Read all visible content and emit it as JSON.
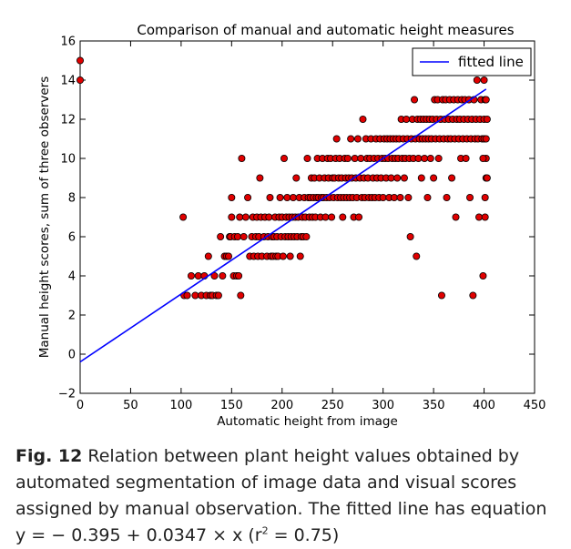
{
  "chart_data": {
    "type": "scatter",
    "title": "Comparison of manual and automatic height measures",
    "xlabel": "Automatic height from image",
    "ylabel": "Manual height scores, sum of three observers",
    "xlim": [
      0,
      450
    ],
    "ylim": [
      -2,
      16
    ],
    "xticks": [
      "0",
      "50",
      "100",
      "150",
      "200",
      "250",
      "300",
      "350",
      "400",
      "450"
    ],
    "yticks": [
      "−2",
      "0",
      "2",
      "4",
      "6",
      "8",
      "10",
      "12",
      "14",
      "16"
    ],
    "grid": false,
    "legend": {
      "position": "top-right",
      "entries": [
        "fitted line"
      ]
    },
    "colors": {
      "points": "#e00000",
      "point_edge": "#000000",
      "line": "#0000ff"
    },
    "series": [
      {
        "kind": "scatter",
        "points": [
          [
            0,
            15
          ],
          [
            0,
            14
          ],
          [
            102,
            7
          ],
          [
            103,
            3
          ],
          [
            106,
            3
          ],
          [
            110,
            4
          ],
          [
            114,
            3
          ],
          [
            117,
            4
          ],
          [
            120,
            3
          ],
          [
            123,
            4
          ],
          [
            125,
            3
          ],
          [
            127,
            5
          ],
          [
            129,
            3
          ],
          [
            131,
            3
          ],
          [
            133,
            4
          ],
          [
            135,
            3
          ],
          [
            137,
            3
          ],
          [
            139,
            6
          ],
          [
            141,
            4
          ],
          [
            143,
            5
          ],
          [
            145,
            5
          ],
          [
            147,
            5
          ],
          [
            148,
            6
          ],
          [
            149,
            6
          ],
          [
            150,
            7
          ],
          [
            150,
            8
          ],
          [
            152,
            4
          ],
          [
            153,
            6
          ],
          [
            155,
            4
          ],
          [
            156,
            6
          ],
          [
            157,
            4
          ],
          [
            158,
            7
          ],
          [
            159,
            3
          ],
          [
            160,
            10
          ],
          [
            162,
            6
          ],
          [
            164,
            7
          ],
          [
            166,
            8
          ],
          [
            168,
            5
          ],
          [
            170,
            6
          ],
          [
            171,
            7
          ],
          [
            172,
            5
          ],
          [
            174,
            6
          ],
          [
            175,
            7
          ],
          [
            176,
            5
          ],
          [
            177,
            6
          ],
          [
            178,
            9
          ],
          [
            179,
            7
          ],
          [
            180,
            5
          ],
          [
            182,
            6
          ],
          [
            183,
            7
          ],
          [
            185,
            5
          ],
          [
            186,
            6
          ],
          [
            187,
            7
          ],
          [
            188,
            8
          ],
          [
            189,
            5
          ],
          [
            190,
            6
          ],
          [
            191,
            5
          ],
          [
            192,
            6
          ],
          [
            193,
            7
          ],
          [
            194,
            5
          ],
          [
            195,
            6
          ],
          [
            196,
            5
          ],
          [
            197,
            7
          ],
          [
            198,
            8
          ],
          [
            199,
            6
          ],
          [
            200,
            7
          ],
          [
            201,
            5
          ],
          [
            202,
            10
          ],
          [
            203,
            6
          ],
          [
            204,
            7
          ],
          [
            205,
            8
          ],
          [
            206,
            6
          ],
          [
            207,
            7
          ],
          [
            208,
            5
          ],
          [
            209,
            6
          ],
          [
            210,
            7
          ],
          [
            211,
            8
          ],
          [
            212,
            6
          ],
          [
            213,
            7
          ],
          [
            214,
            9
          ],
          [
            215,
            6
          ],
          [
            216,
            7
          ],
          [
            217,
            8
          ],
          [
            218,
            5
          ],
          [
            219,
            6
          ],
          [
            220,
            7
          ],
          [
            221,
            6
          ],
          [
            222,
            8
          ],
          [
            223,
            7
          ],
          [
            224,
            6
          ],
          [
            225,
            10
          ],
          [
            226,
            8
          ],
          [
            227,
            7
          ],
          [
            228,
            8
          ],
          [
            229,
            9
          ],
          [
            230,
            7
          ],
          [
            231,
            8
          ],
          [
            232,
            9
          ],
          [
            233,
            7
          ],
          [
            234,
            8
          ],
          [
            235,
            10
          ],
          [
            236,
            8
          ],
          [
            237,
            9
          ],
          [
            238,
            7
          ],
          [
            239,
            8
          ],
          [
            240,
            10
          ],
          [
            241,
            8
          ],
          [
            242,
            9
          ],
          [
            243,
            7
          ],
          [
            244,
            8
          ],
          [
            245,
            10
          ],
          [
            246,
            9
          ],
          [
            247,
            8
          ],
          [
            248,
            10
          ],
          [
            249,
            7
          ],
          [
            250,
            9
          ],
          [
            251,
            8
          ],
          [
            252,
            9
          ],
          [
            253,
            10
          ],
          [
            254,
            11
          ],
          [
            255,
            8
          ],
          [
            256,
            9
          ],
          [
            257,
            10
          ],
          [
            258,
            8
          ],
          [
            259,
            9
          ],
          [
            260,
            7
          ],
          [
            261,
            8
          ],
          [
            262,
            10
          ],
          [
            263,
            9
          ],
          [
            264,
            8
          ],
          [
            265,
            10
          ],
          [
            266,
            9
          ],
          [
            267,
            8
          ],
          [
            268,
            11
          ],
          [
            269,
            9
          ],
          [
            270,
            8
          ],
          [
            271,
            7
          ],
          [
            272,
            10
          ],
          [
            273,
            9
          ],
          [
            274,
            8
          ],
          [
            275,
            11
          ],
          [
            276,
            7
          ],
          [
            277,
            9
          ],
          [
            278,
            10
          ],
          [
            279,
            8
          ],
          [
            280,
            12
          ],
          [
            281,
            9
          ],
          [
            282,
            8
          ],
          [
            283,
            11
          ],
          [
            284,
            10
          ],
          [
            285,
            9
          ],
          [
            286,
            8
          ],
          [
            287,
            10
          ],
          [
            288,
            11
          ],
          [
            289,
            8
          ],
          [
            290,
            9
          ],
          [
            291,
            10
          ],
          [
            292,
            8
          ],
          [
            293,
            11
          ],
          [
            294,
            9
          ],
          [
            295,
            10
          ],
          [
            296,
            8
          ],
          [
            297,
            11
          ],
          [
            298,
            9
          ],
          [
            299,
            10
          ],
          [
            300,
            8
          ],
          [
            301,
            11
          ],
          [
            302,
            10
          ],
          [
            303,
            9
          ],
          [
            304,
            11
          ],
          [
            305,
            10
          ],
          [
            306,
            8
          ],
          [
            307,
            11
          ],
          [
            308,
            9
          ],
          [
            309,
            10
          ],
          [
            310,
            11
          ],
          [
            311,
            8
          ],
          [
            312,
            10
          ],
          [
            313,
            11
          ],
          [
            314,
            9
          ],
          [
            315,
            10
          ],
          [
            316,
            11
          ],
          [
            317,
            8
          ],
          [
            318,
            12
          ],
          [
            319,
            10
          ],
          [
            320,
            11
          ],
          [
            321,
            9
          ],
          [
            322,
            10
          ],
          [
            323,
            12
          ],
          [
            324,
            11
          ],
          [
            325,
            8
          ],
          [
            326,
            10
          ],
          [
            327,
            6
          ],
          [
            328,
            11
          ],
          [
            329,
            12
          ],
          [
            330,
            10
          ],
          [
            331,
            13
          ],
          [
            332,
            11
          ],
          [
            333,
            5
          ],
          [
            334,
            12
          ],
          [
            335,
            10
          ],
          [
            336,
            11
          ],
          [
            337,
            12
          ],
          [
            338,
            9
          ],
          [
            339,
            11
          ],
          [
            340,
            12
          ],
          [
            341,
            10
          ],
          [
            342,
            11
          ],
          [
            343,
            12
          ],
          [
            344,
            8
          ],
          [
            345,
            11
          ],
          [
            346,
            12
          ],
          [
            347,
            10
          ],
          [
            348,
            11
          ],
          [
            349,
            12
          ],
          [
            350,
            9
          ],
          [
            351,
            13
          ],
          [
            352,
            11
          ],
          [
            353,
            12
          ],
          [
            354,
            13
          ],
          [
            355,
            10
          ],
          [
            356,
            11
          ],
          [
            357,
            12
          ],
          [
            358,
            3
          ],
          [
            359,
            13
          ],
          [
            360,
            11
          ],
          [
            361,
            12
          ],
          [
            362,
            13
          ],
          [
            363,
            8
          ],
          [
            364,
            11
          ],
          [
            365,
            12
          ],
          [
            366,
            13
          ],
          [
            367,
            11
          ],
          [
            368,
            9
          ],
          [
            369,
            12
          ],
          [
            370,
            13
          ],
          [
            371,
            11
          ],
          [
            372,
            7
          ],
          [
            373,
            12
          ],
          [
            374,
            13
          ],
          [
            375,
            11
          ],
          [
            376,
            12
          ],
          [
            377,
            10
          ],
          [
            378,
            13
          ],
          [
            379,
            11
          ],
          [
            380,
            12
          ],
          [
            381,
            13
          ],
          [
            382,
            10
          ],
          [
            383,
            11
          ],
          [
            384,
            12
          ],
          [
            385,
            13
          ],
          [
            386,
            8
          ],
          [
            387,
            11
          ],
          [
            388,
            12
          ],
          [
            389,
            3
          ],
          [
            390,
            13
          ],
          [
            391,
            11
          ],
          [
            392,
            12
          ],
          [
            393,
            14
          ],
          [
            394,
            11
          ],
          [
            395,
            7
          ],
          [
            396,
            12
          ],
          [
            397,
            13
          ],
          [
            398,
            11
          ],
          [
            399,
            4
          ],
          [
            400,
            12
          ],
          [
            401,
            13
          ],
          [
            401,
            7
          ],
          [
            402,
            10
          ],
          [
            402,
            9
          ],
          [
            401,
            8
          ],
          [
            400,
            11
          ],
          [
            403,
            12
          ],
          [
            402,
            13
          ],
          [
            400,
            14
          ],
          [
            403,
            9
          ],
          [
            399,
            10
          ],
          [
            402,
            11
          ]
        ]
      },
      {
        "name": "fitted line",
        "kind": "line",
        "equation": "y = -0.395 + 0.0347 x",
        "x": [
          0,
          402
        ],
        "y": [
          -0.395,
          13.54
        ]
      }
    ]
  },
  "caption": {
    "label": "Fig. 12",
    "line1": "Relation between plant height values obtained by",
    "line2": "automated segmentation of image data and visual scores",
    "line3": "assigned by manual observation. The fitted line has equation",
    "line4_pre": "y = − 0.395 + 0.0347 × x (r",
    "line4_sup": "2",
    "line4_post": " = 0.75)"
  }
}
